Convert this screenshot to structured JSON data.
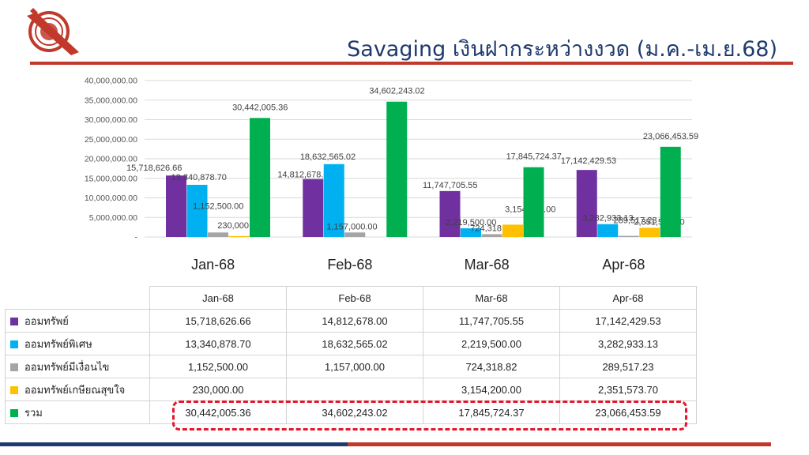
{
  "header": {
    "title": "Savaging เงินฝากระหว่างงวด  (ม.ค.-เม.ย.68)"
  },
  "colors": {
    "title": "#1f3a6e",
    "accent_red": "#c0392b",
    "highlight": "#e0182b",
    "navy": "#1f3a6e"
  },
  "chart_data": {
    "type": "bar",
    "title": "",
    "categories": [
      "Jan-68",
      "Feb-68",
      "Mar-68",
      "Apr-68"
    ],
    "series": [
      {
        "name": "ออมทรัพย์",
        "color": "#7030a0",
        "values": [
          15718626.66,
          14812678.0,
          11747705.55,
          17142429.53
        ],
        "labels": [
          "15,718,626.66",
          "14,812,678.00",
          "11,747,705.55",
          "17,142,429.53"
        ]
      },
      {
        "name": "ออมทรัพย์พิเศษ",
        "color": "#00b0f0",
        "values": [
          13340878.7,
          18632565.02,
          2219500.0,
          3282933.13
        ],
        "labels": [
          "13,340,878.70",
          "18,632,565.02",
          "2,219,500.00",
          "3,282,933.13"
        ]
      },
      {
        "name": "ออมทรัพย์มีเงื่อนไข",
        "color": "#a5a5a5",
        "values": [
          1152500.0,
          1157000.0,
          724318.82,
          289517.23
        ],
        "labels": [
          "1,152,500.00",
          "1,157,000.00",
          "724,318.82",
          "289,517.23"
        ]
      },
      {
        "name": "ออมทรัพย์เกษียณสุขใจ",
        "color": "#ffc000",
        "values": [
          230000.0,
          null,
          3154200.0,
          2351573.7
        ],
        "labels": [
          "230,000.00",
          "",
          "3,154,200.00",
          "2,351,573.70"
        ]
      },
      {
        "name": "รวม",
        "color": "#00b050",
        "values": [
          30442005.36,
          34602243.02,
          17845724.37,
          23066453.59
        ],
        "labels": [
          "30,442,005.36",
          "34,602,243.02",
          "17,845,724.37",
          "23,066,453.59"
        ]
      }
    ],
    "ylim": [
      0,
      40000000
    ],
    "y_ticks": [
      "-",
      "5,000,000.00",
      "10,000,000.00",
      "15,000,000.00",
      "20,000,000.00",
      "25,000,000.00",
      "30,000,000.00",
      "35,000,000.00",
      "40,000,000.00"
    ],
    "grid": true,
    "legend": "table-below"
  },
  "table": {
    "headers": [
      "Jan-68",
      "Feb-68",
      "Mar-68",
      "Apr-68"
    ]
  }
}
